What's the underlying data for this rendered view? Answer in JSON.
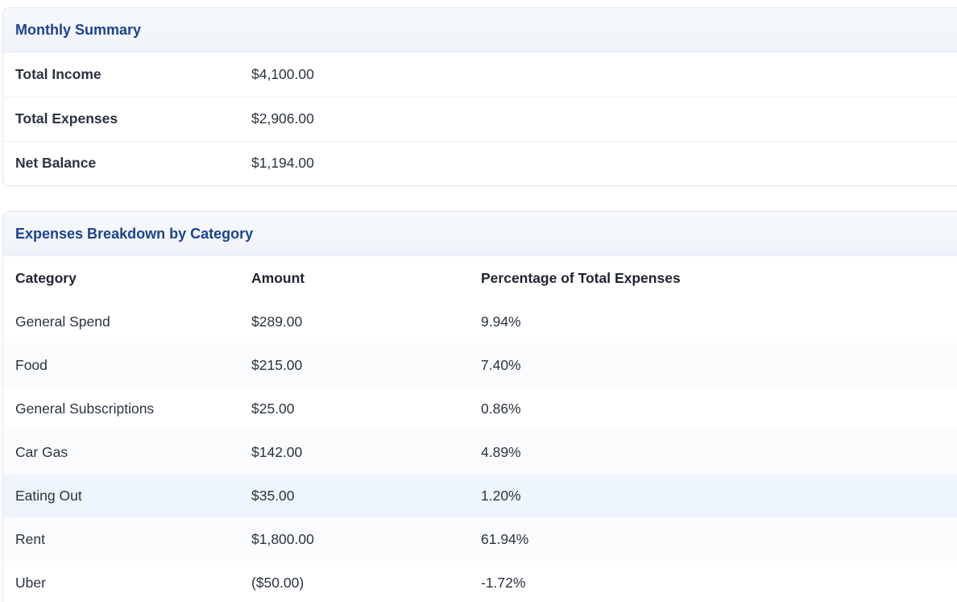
{
  "summary": {
    "title": "Monthly Summary",
    "rows": [
      {
        "label": "Total Income",
        "value": "$4,100.00"
      },
      {
        "label": "Total Expenses",
        "value": "$2,906.00"
      },
      {
        "label": "Net Balance",
        "value": "$1,194.00"
      }
    ]
  },
  "breakdown": {
    "title": "Expenses Breakdown by Category",
    "headers": {
      "category": "Category",
      "amount": "Amount",
      "percentage": "Percentage of Total Expenses"
    },
    "rows": [
      {
        "category": "General Spend",
        "amount": "$289.00",
        "percentage": "9.94%"
      },
      {
        "category": "Food",
        "amount": "$215.00",
        "percentage": "7.40%"
      },
      {
        "category": "General Subscriptions",
        "amount": "$25.00",
        "percentage": "0.86%"
      },
      {
        "category": "Car Gas",
        "amount": "$142.00",
        "percentage": "4.89%"
      },
      {
        "category": "Eating Out",
        "amount": "$35.00",
        "percentage": "1.20%"
      },
      {
        "category": "Rent",
        "amount": "$1,800.00",
        "percentage": "61.94%"
      },
      {
        "category": "Uber",
        "amount": "($50.00)",
        "percentage": "-1.72%"
      }
    ]
  }
}
